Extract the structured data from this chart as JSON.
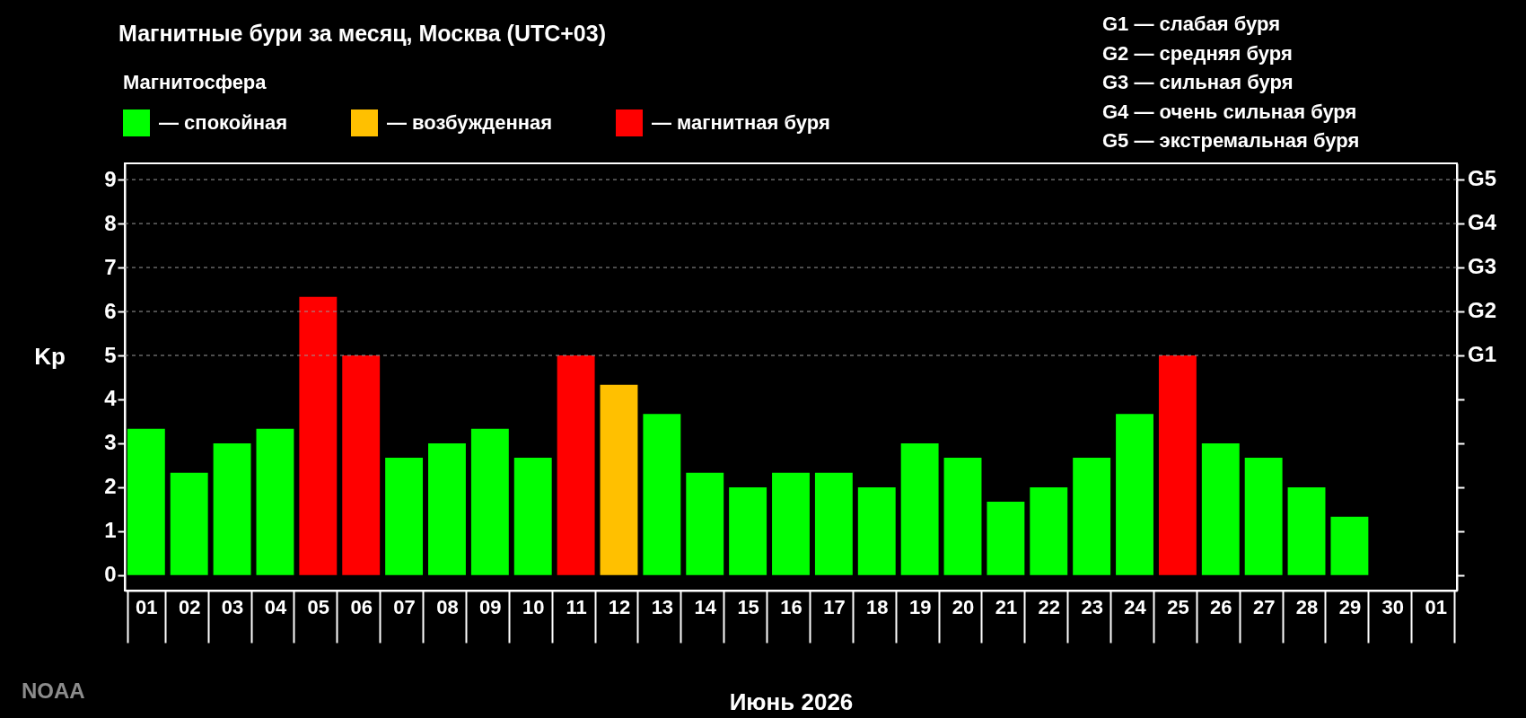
{
  "chart_data": {
    "type": "bar",
    "title": "Магнитные бури за месяц, Москва (UTC+03)",
    "xlabel": "Июнь 2026",
    "ylabel": "Kp",
    "legend_title": "Магнитосфера",
    "legend": "top left",
    "grid": false,
    "annotations": [
      "G1 — слабая буря",
      "G2 — средняя буря",
      "G3 — сильная буря",
      "G4 — очень сильная буря",
      "G5 — экстремальная буря",
      "NOAA"
    ],
    "categories": [
      "01",
      "02",
      "03",
      "04",
      "05",
      "06",
      "07",
      "08",
      "09",
      "10",
      "11",
      "12",
      "13",
      "14",
      "15",
      "16",
      "17",
      "18",
      "19",
      "20",
      "21",
      "22",
      "23",
      "24",
      "25",
      "26",
      "27",
      "28",
      "29",
      "30",
      "01"
    ],
    "series": [
      {
        "name": "— спокойная",
        "color": "#00ff00",
        "values": [
          3.33,
          2.33,
          3,
          3.33,
          null,
          null,
          2.67,
          3,
          3.33,
          2.67,
          null,
          null,
          3.67,
          2.33,
          2,
          2.33,
          2.33,
          2,
          3,
          2.67,
          1.67,
          2,
          2.67,
          3.67,
          null,
          3,
          2.67,
          2,
          1.33,
          null,
          null
        ]
      },
      {
        "name": "— возбужденная",
        "color": "#ffc000",
        "values": [
          null,
          null,
          null,
          null,
          null,
          null,
          null,
          null,
          null,
          null,
          null,
          4.33,
          null,
          null,
          null,
          null,
          null,
          null,
          null,
          null,
          null,
          null,
          null,
          null,
          null,
          null,
          null,
          null,
          null,
          null,
          null
        ]
      },
      {
        "name": "— магнитная буря",
        "color": "#ff0000",
        "values": [
          null,
          null,
          null,
          null,
          6.33,
          5,
          null,
          null,
          null,
          null,
          5,
          null,
          null,
          null,
          null,
          null,
          null,
          null,
          null,
          null,
          null,
          null,
          null,
          null,
          5,
          null,
          null,
          null,
          null,
          null,
          null
        ]
      }
    ],
    "ylim": [
      -0.35,
      9.37
    ],
    "yticks": [
      0,
      1,
      2,
      3,
      4,
      5,
      6,
      7,
      8,
      9
    ],
    "ref_lines": [
      {
        "axis": "y",
        "value": 5,
        "label": "G1",
        "color": "#9a9a9a",
        "line_style": "dashed"
      },
      {
        "axis": "y",
        "value": 6,
        "label": "G2",
        "color": "#9a9a9a",
        "line_style": "dashed"
      },
      {
        "axis": "y",
        "value": 7,
        "label": "G3",
        "color": "#9a9a9a",
        "line_style": "dashed"
      },
      {
        "axis": "y",
        "value": 8,
        "label": "G4",
        "color": "#9a9a9a",
        "line_style": "dashed"
      },
      {
        "axis": "y",
        "value": 9,
        "label": "G5",
        "color": "#9a9a9a",
        "line_style": "dashed"
      }
    ]
  }
}
